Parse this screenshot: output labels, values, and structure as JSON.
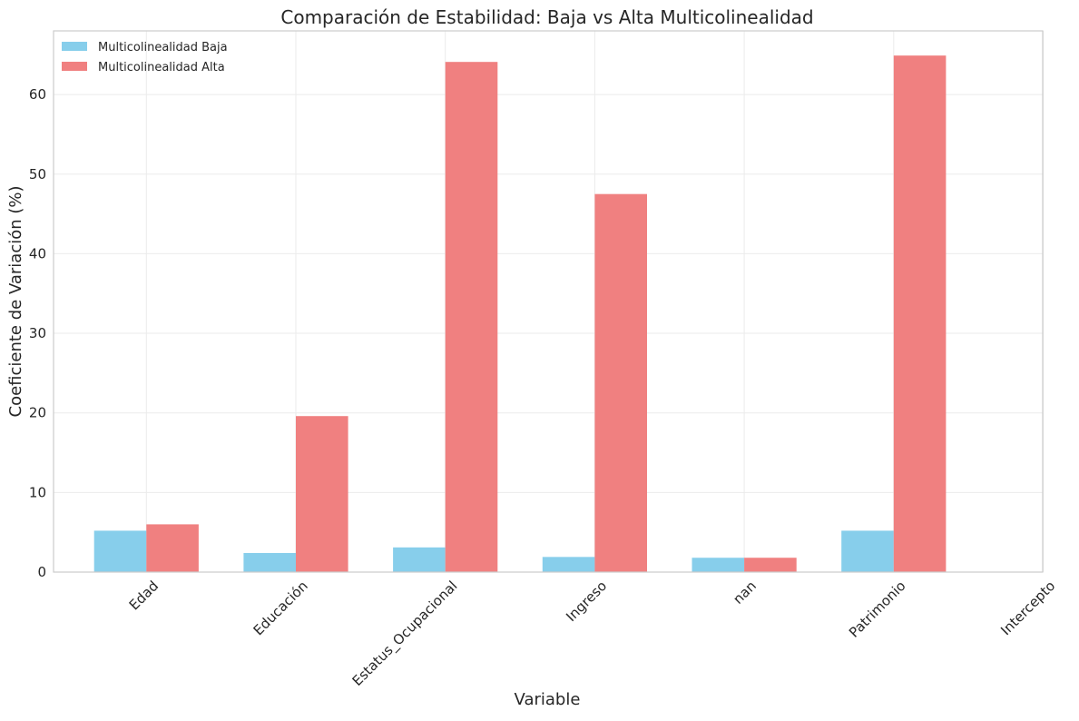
{
  "chart_data": {
    "type": "bar",
    "title": "Comparación de Estabilidad: Baja vs Alta Multicolinealidad",
    "xlabel": "Variable",
    "ylabel": "Coeficiente de Variación (%)",
    "categories": [
      "Edad",
      "Educación",
      "Estatus_Ocupacional",
      "Ingreso",
      "nan",
      "Patrimonio",
      "Intercepto"
    ],
    "series": [
      {
        "name": "Multicolinealidad Baja",
        "color": "#87ceeb",
        "values": [
          5.2,
          2.4,
          3.1,
          1.9,
          1.8,
          5.2,
          0
        ]
      },
      {
        "name": "Multicolinealidad Alta",
        "color": "#f08080",
        "values": [
          6.0,
          19.6,
          64.1,
          47.5,
          1.8,
          64.9,
          0
        ]
      }
    ],
    "ylim": [
      0,
      68
    ],
    "yticks": [
      0,
      10,
      20,
      30,
      40,
      50,
      60
    ],
    "grid": true,
    "legend_position": "top-left"
  }
}
